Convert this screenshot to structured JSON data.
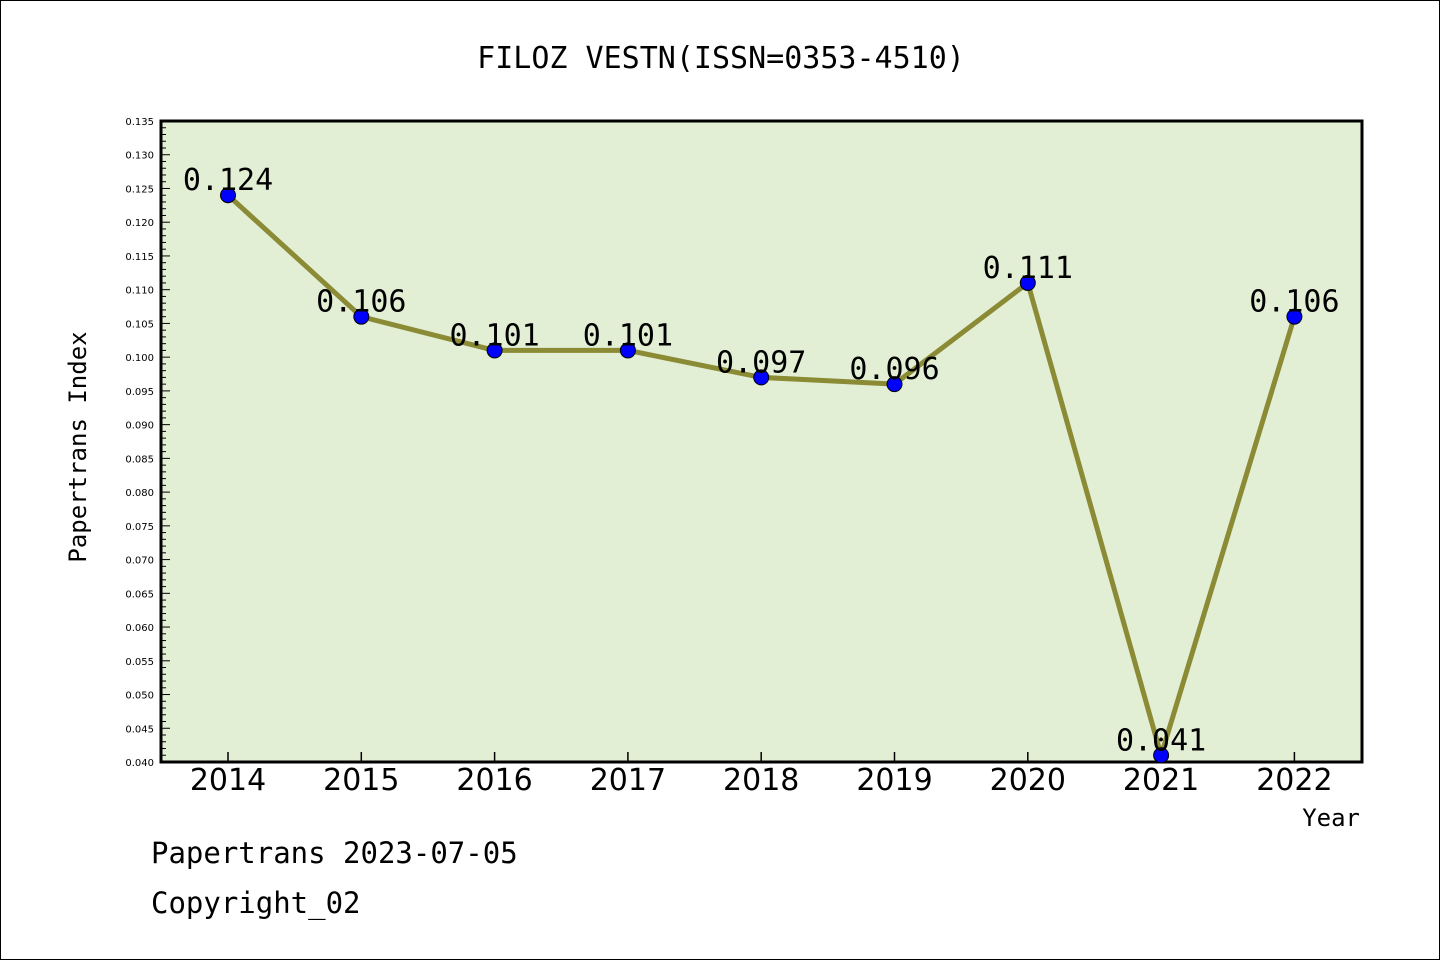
{
  "chart_data": {
    "type": "line",
    "title": "FILOZ VESTN(ISSN=0353-4510)",
    "xlabel": "Year",
    "ylabel": "Papertrans Index",
    "categories": [
      "2014",
      "2015",
      "2016",
      "2017",
      "2018",
      "2019",
      "2020",
      "2021",
      "2022"
    ],
    "series": [
      {
        "values": [
          0.124,
          0.106,
          0.101,
          0.101,
          0.097,
          0.096,
          0.111,
          0.041,
          0.106
        ],
        "labels": [
          "0.124",
          "0.106",
          "0.101",
          "0.101",
          "0.097",
          "0.096",
          "0.111",
          "0.041",
          "0.106"
        ]
      }
    ],
    "ylim": [
      0.04,
      0.135
    ],
    "yticks": [
      "0.040",
      "0.045",
      "0.050",
      "0.055",
      "0.060",
      "0.065",
      "0.070",
      "0.075",
      "0.080",
      "0.085",
      "0.090",
      "0.095",
      "0.100",
      "0.105",
      "0.110",
      "0.115",
      "0.120",
      "0.125",
      "0.130",
      "0.135"
    ],
    "grid": false,
    "legend": "none",
    "colors": {
      "plot_background": "#e2efd5",
      "line": "#8b8a35",
      "marker": "#0000ff"
    }
  },
  "footer": {
    "date_line": "Papertrans 2023-07-05",
    "copyright": "Copyright_02"
  }
}
